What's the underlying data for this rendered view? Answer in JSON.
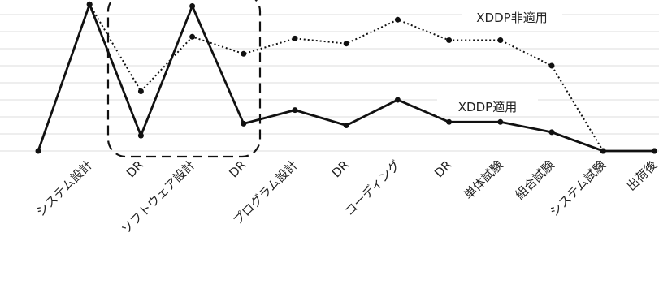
{
  "chart_data": {
    "type": "line",
    "categories": [
      null,
      "システム設計",
      "DR",
      "ソフトウェア設計",
      "DR",
      "プログラム設計",
      "DR",
      "コーディング",
      "DR",
      "単体試験",
      "組合試験",
      "システム試験",
      "出荷後"
    ],
    "series": [
      {
        "name": "XDDP非適用",
        "color": "#111111",
        "dash": "dotted",
        "values": [
          null,
          8.6,
          3.5,
          6.7,
          5.7,
          6.6,
          6.3,
          7.7,
          6.5,
          6.5,
          5.0,
          0,
          0
        ]
      },
      {
        "name": "XDDP適用",
        "color": "#111111",
        "dash": "solid",
        "values": [
          0,
          8.6,
          0.9,
          8.5,
          1.6,
          2.4,
          1.5,
          3.0,
          1.7,
          1.7,
          1.1,
          0,
          0
        ]
      }
    ],
    "ylim": [
      0,
      9
    ],
    "yticks": [
      0,
      1,
      2,
      3,
      4,
      5,
      6,
      7,
      8
    ],
    "grid": true
  }
}
